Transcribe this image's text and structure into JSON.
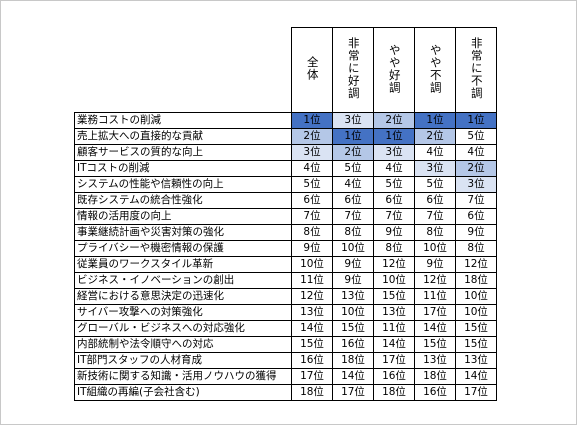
{
  "table": {
    "columns": [
      "全体",
      "非常に好調",
      "やや好調",
      "やや不調",
      "非常に不調"
    ],
    "rows": [
      {
        "label": "業務コストの削減",
        "values": [
          "1位",
          "3位",
          "2位",
          "1位",
          "1位"
        ]
      },
      {
        "label": "売上拡大への直接的な貢献",
        "values": [
          "2位",
          "1位",
          "1位",
          "2位",
          "5位"
        ]
      },
      {
        "label": "顧客サービスの質的な向上",
        "values": [
          "3位",
          "2位",
          "3位",
          "4位",
          "4位"
        ]
      },
      {
        "label": "ITコストの削減",
        "values": [
          "4位",
          "5位",
          "4位",
          "3位",
          "2位"
        ]
      },
      {
        "label": "システムの性能や信頼性の向上",
        "values": [
          "5位",
          "4位",
          "5位",
          "5位",
          "3位"
        ]
      },
      {
        "label": "既存システムの統合性強化",
        "values": [
          "6位",
          "6位",
          "6位",
          "6位",
          "7位"
        ]
      },
      {
        "label": "情報の活用度の向上",
        "values": [
          "7位",
          "7位",
          "7位",
          "7位",
          "6位"
        ]
      },
      {
        "label": "事業継続計画や災害対策の強化",
        "values": [
          "8位",
          "8位",
          "9位",
          "8位",
          "9位"
        ]
      },
      {
        "label": "プライバシーや機密情報の保護",
        "values": [
          "9位",
          "10位",
          "8位",
          "10位",
          "8位"
        ]
      },
      {
        "label": "従業員のワークスタイル革新",
        "values": [
          "10位",
          "9位",
          "12位",
          "9位",
          "12位"
        ]
      },
      {
        "label": "ビジネス・イノベーションの創出",
        "values": [
          "11位",
          "9位",
          "10位",
          "12位",
          "18位"
        ]
      },
      {
        "label": "経営における意思決定の迅速化",
        "values": [
          "12位",
          "13位",
          "15位",
          "11位",
          "10位"
        ]
      },
      {
        "label": "サイバー攻撃への対策強化",
        "values": [
          "13位",
          "10位",
          "13位",
          "17位",
          "10位"
        ]
      },
      {
        "label": "グローバル・ビジネスへの対応強化",
        "values": [
          "14位",
          "15位",
          "11位",
          "14位",
          "15位"
        ]
      },
      {
        "label": "内部統制や法令順守への対応",
        "values": [
          "15位",
          "16位",
          "14位",
          "15位",
          "15位"
        ]
      },
      {
        "label": "IT部門スタッフの人材育成",
        "values": [
          "16位",
          "18位",
          "17位",
          "13位",
          "13位"
        ]
      },
      {
        "label": "新技術に関する知識・活用ノウハウの獲得",
        "values": [
          "17位",
          "14位",
          "16位",
          "18位",
          "14位"
        ]
      },
      {
        "label": "IT組織の再編(子会社含む)",
        "values": [
          "18位",
          "17位",
          "18位",
          "16位",
          "17位"
        ]
      }
    ]
  },
  "highlight_colors": {
    "rank1": "#4472c4",
    "rank2": "#b4c7e7",
    "rank3": "#dae3f3"
  }
}
